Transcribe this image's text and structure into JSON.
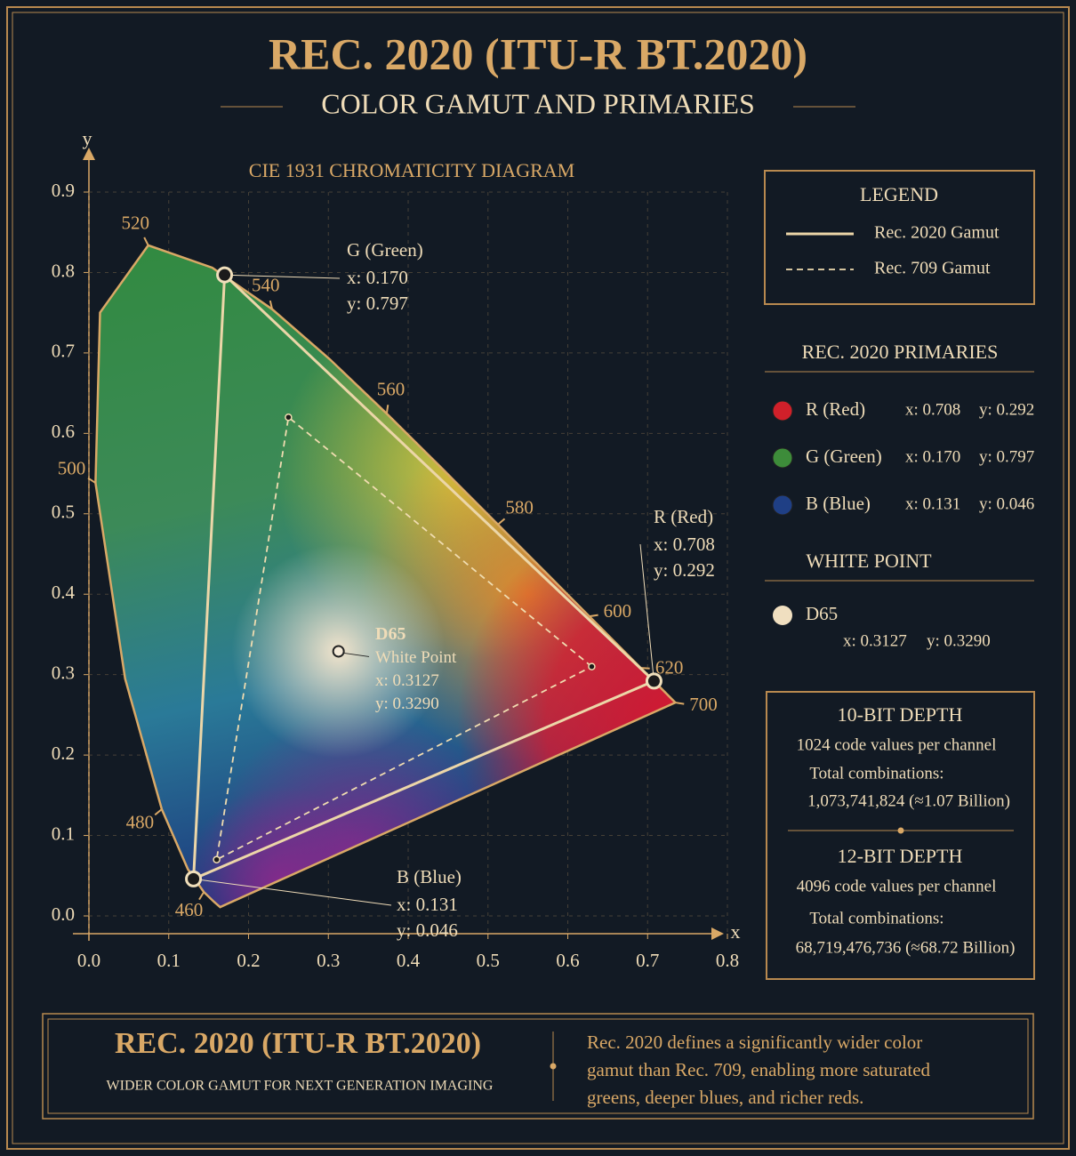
{
  "title": "REC. 2020 (ITU-R BT.2020)",
  "subtitle": "COLOR GAMUT AND PRIMARIES",
  "chart_data": {
    "type": "line",
    "title": "CIE 1931 CHROMATICITY DIAGRAM",
    "x_label": "x",
    "y_label": "y",
    "xlim": [
      0,
      0.8
    ],
    "ylim": [
      0,
      0.9
    ],
    "xticks": [
      {
        "value": 0,
        "label": "0.0"
      },
      0.1,
      0.2,
      0.3,
      0.4,
      0.5,
      0.6,
      0.7,
      0.8
    ],
    "yticks": [
      {
        "value": 0,
        "label": "0.0"
      },
      0.1,
      0.2,
      0.3,
      0.4,
      0.5,
      0.6,
      0.7,
      0.8,
      0.9
    ],
    "grid": true,
    "locus_x": [
      0.1644,
      0.1566,
      0.144,
      0.1241,
      0.0913,
      0.0454,
      0.0082,
      0.0139,
      0.0743,
      0.1547,
      0.2296,
      0.3016,
      0.3731,
      0.4441,
      0.5125,
      0.5752,
      0.627,
      0.6915,
      0.719,
      0.7347
    ],
    "locus_y": [
      0.0109,
      0.0177,
      0.0297,
      0.0578,
      0.1327,
      0.295,
      0.5384,
      0.7502,
      0.8338,
      0.8059,
      0.7543,
      0.6923,
      0.6245,
      0.5547,
      0.4866,
      0.4242,
      0.3725,
      0.3083,
      0.2809,
      0.2653
    ],
    "locus_labels": [
      null,
      null,
      "460",
      null,
      "480",
      null,
      "500",
      null,
      "520",
      null,
      "540",
      null,
      "560",
      null,
      "580",
      null,
      "600",
      "620",
      null,
      "700"
    ],
    "series": [
      {
        "name": "Rec. 2020 Gamut",
        "color": "#ecd6a8",
        "line_style": "solid",
        "x": [
          0.708,
          0.17,
          0.131,
          0.708
        ],
        "values": [
          0.292,
          0.797,
          0.046,
          0.292
        ]
      },
      {
        "name": "Rec. 709 Gamut",
        "color": "#f0dcb0",
        "line_style": "dashed",
        "x": [
          0.63,
          0.25,
          0.16,
          0.63
        ],
        "values": [
          0.31,
          0.62,
          0.07,
          0.31
        ]
      }
    ],
    "legend_title": "LEGEND",
    "primaries": [
      {
        "name": "R (Red)",
        "color": "#d0202a",
        "x": 0.708,
        "y": 0.292,
        "x_label": "x: 0.708",
        "y_label": "y: 0.292"
      },
      {
        "name": "G (Green)",
        "color": "#3d8c3a",
        "x": 0.17,
        "y": 0.797,
        "x_label": "x: 0.170",
        "y_label": "y: 0.797"
      },
      {
        "name": "B (Blue)",
        "color": "#1f3f85",
        "x": 0.131,
        "y": 0.046,
        "x_label": "x: 0.131",
        "y_label": "y: 0.046"
      }
    ],
    "white_point": {
      "name": "D65",
      "note": "White Point",
      "color": "#f0dfc0",
      "x": 0.3127,
      "y": 0.329,
      "x_label": "x: 0.3127",
      "y_label": "y: 0.3290"
    }
  },
  "primaries_heading": "REC. 2020 PRIMARIES",
  "white_point_heading": "WHITE POINT",
  "bit_depths": [
    {
      "title": "10-BIT DEPTH",
      "codes": "1024 code values per channel",
      "total_label": "Total combinations:",
      "total": "1,073,741,824 (≈1.07 Billion)"
    },
    {
      "title": "12-BIT DEPTH",
      "codes": "4096 code values per channel",
      "total_label": "Total combinations:",
      "total": "68,719,476,736 (≈68.72 Billion)"
    }
  ],
  "footer": {
    "title": "REC. 2020 (ITU-R BT.2020)",
    "subtitle": "WIDER COLOR GAMUT FOR NEXT GENERATION IMAGING",
    "description": [
      "Rec. 2020 defines a significantly wider color",
      "gamut than Rec. 709, enabling more saturated",
      "greens, deeper blues, and richer reds."
    ]
  }
}
